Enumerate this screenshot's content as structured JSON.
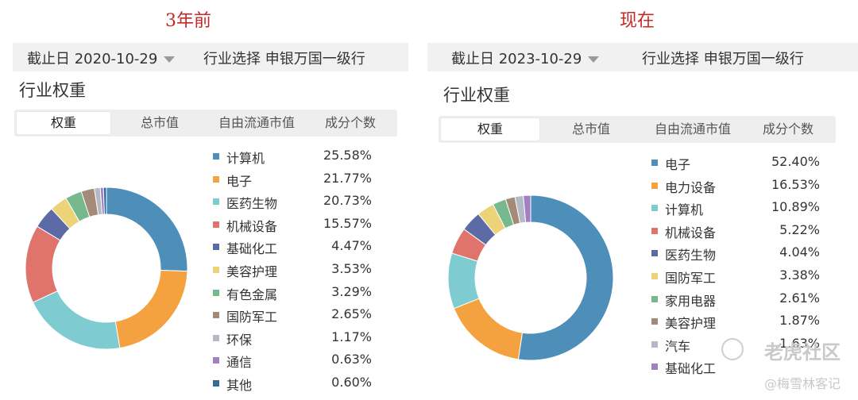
{
  "headings": {
    "left": "3年前",
    "right": "现在"
  },
  "left": {
    "date_label": "截止日 2020-10-29",
    "industry_label": "行业选择 申银万国一级行",
    "section_title": "行业权重",
    "tabs": [
      "权重",
      "总市值",
      "自由流通市值",
      "成分个数"
    ],
    "active_tab": "权重",
    "items": [
      {
        "name": "计算机",
        "pct": "25.58%",
        "value": 25.58,
        "color": "#4e8fb9"
      },
      {
        "name": "电子",
        "pct": "21.77%",
        "value": 21.77,
        "color": "#f3a23f"
      },
      {
        "name": "医药生物",
        "pct": "20.73%",
        "value": 20.73,
        "color": "#7fcbd2"
      },
      {
        "name": "机械设备",
        "pct": "15.57%",
        "value": 15.57,
        "color": "#e0736c"
      },
      {
        "name": "基础化工",
        "pct": "4.47%",
        "value": 4.47,
        "color": "#5c6aa6"
      },
      {
        "name": "美容护理",
        "pct": "3.53%",
        "value": 3.53,
        "color": "#ecd37a"
      },
      {
        "name": "有色金属",
        "pct": "3.29%",
        "value": 3.29,
        "color": "#77b98c"
      },
      {
        "name": "国防军工",
        "pct": "2.65%",
        "value": 2.65,
        "color": "#a48b79"
      },
      {
        "name": "环保",
        "pct": "1.17%",
        "value": 1.17,
        "color": "#b3b9c6"
      },
      {
        "name": "通信",
        "pct": "0.63%",
        "value": 0.63,
        "color": "#a27fc2"
      },
      {
        "name": "其他",
        "pct": "0.60%",
        "value": 0.6,
        "color": "#2f6e9b"
      }
    ]
  },
  "right": {
    "date_label": "截止日 2023-10-29",
    "industry_label": "行业选择 申银万国一级行",
    "section_title": "行业权重",
    "tabs": [
      "权重",
      "总市值",
      "自由流通市值",
      "成分个数"
    ],
    "active_tab": "权重",
    "items": [
      {
        "name": "电子",
        "pct": "52.40%",
        "value": 52.4,
        "color": "#4e8fb9"
      },
      {
        "name": "电力设备",
        "pct": "16.53%",
        "value": 16.53,
        "color": "#f3a23f"
      },
      {
        "name": "计算机",
        "pct": "10.89%",
        "value": 10.89,
        "color": "#7fcbd2"
      },
      {
        "name": "机械设备",
        "pct": "5.22%",
        "value": 5.22,
        "color": "#e0736c"
      },
      {
        "name": "医药生物",
        "pct": "4.04%",
        "value": 4.04,
        "color": "#5c6aa6"
      },
      {
        "name": "国防军工",
        "pct": "3.38%",
        "value": 3.38,
        "color": "#ecd37a"
      },
      {
        "name": "家用电器",
        "pct": "2.61%",
        "value": 2.61,
        "color": "#77b98c"
      },
      {
        "name": "美容护理",
        "pct": "1.87%",
        "value": 1.87,
        "color": "#a48b79"
      },
      {
        "name": "汽车",
        "pct": "1.63%",
        "value": 1.63,
        "color": "#b3b9c6"
      },
      {
        "name": "基础化工",
        "pct": "",
        "value": 1.43,
        "color": "#a27fc2"
      }
    ]
  },
  "watermark": {
    "logo": "老虎社区",
    "sub": "@梅雪林客记"
  }
}
